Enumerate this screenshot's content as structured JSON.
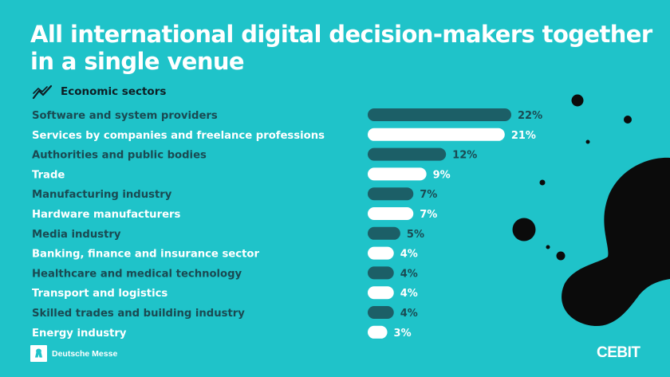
{
  "title_lines": [
    "All international digital decision-makers together",
    "in a single venue"
  ],
  "section_label": "Economic sectors",
  "section_icon": "trend-line-icon",
  "footer": {
    "organizer": "Deutsche Messe",
    "brand": "CEBIT"
  },
  "colors": {
    "background": "#1fc3c9",
    "dark_bar": "#1c5f67",
    "light_bar": "#ffffff",
    "dark_text": "#1a4a52",
    "light_text": "#ffffff",
    "decoration": "#0b0b0b"
  },
  "chart_data": {
    "type": "bar",
    "orientation": "horizontal",
    "categories": [
      "Software and system providers",
      "Services by companies and freelance professions",
      "Authorities and public bodies",
      "Trade",
      "Manufacturing industry",
      "Hardware manufacturers",
      "Media industry",
      "Banking, finance and insurance sector",
      "Healthcare and medical technology",
      "Transport and logistics",
      "Skilled trades and building industry",
      "Energy industry"
    ],
    "values": [
      22,
      21,
      12,
      9,
      7,
      7,
      5,
      4,
      4,
      4,
      4,
      3
    ],
    "labels": [
      "22%",
      "21%",
      "12%",
      "9%",
      "7%",
      "7%",
      "5%",
      "4%",
      "4%",
      "4%",
      "4%",
      "3%"
    ],
    "bar_style": [
      "dark",
      "light",
      "dark",
      "light",
      "dark",
      "light",
      "dark",
      "light",
      "dark",
      "light",
      "dark",
      "light"
    ],
    "unit": "%",
    "grid": false,
    "legend": "none"
  }
}
